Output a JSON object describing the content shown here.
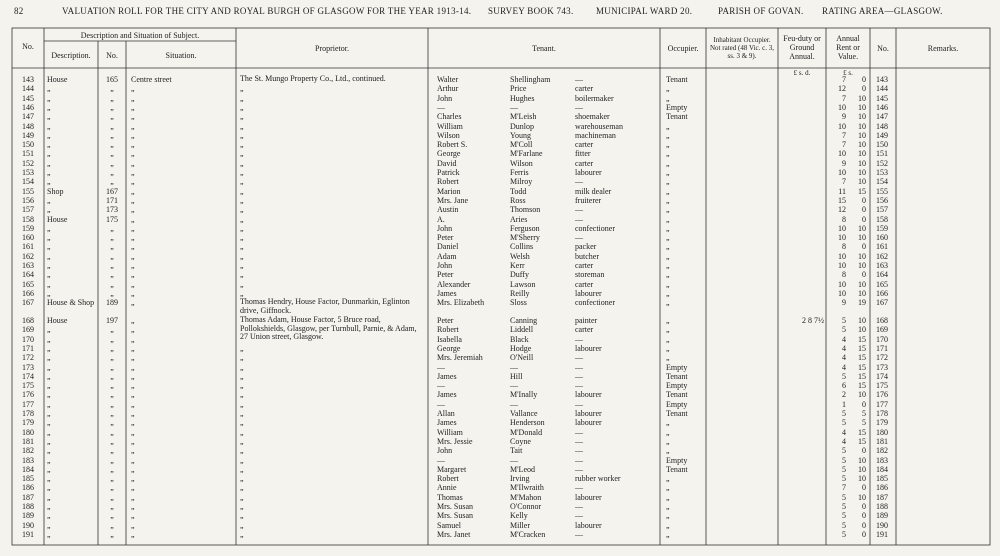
{
  "header": {
    "page": "82",
    "title": "VALUATION ROLL FOR THE CITY AND ROYAL BURGH OF GLASGOW FOR THE YEAR 1913-14.",
    "survey": "SURVEY BOOK 743.",
    "ward": "MUNICIPAL WARD 20.",
    "parish": "PARISH OF GOVAN.",
    "area": "RATING AREA—GLASGOW."
  },
  "columns": {
    "no": "No.",
    "subject": "Description and Situation of Subject.",
    "description": "Description.",
    "house_no": "No.",
    "situation": "Situation.",
    "proprietor": "Proprietor.",
    "tenant": "Tenant.",
    "occupier": "Occupier.",
    "inhabitant": "Inhabitant Occupier. Not rated (48 Vic. c. 3, ss. 3 & 9).",
    "feu": "Feu-duty or Ground Annual.",
    "feu_units": "£ s. d.",
    "rent": "Annual Rent or Value.",
    "rent_units": "£ s.",
    "no2": "No.",
    "remarks": "Remarks."
  },
  "rows": [
    {
      "n": "143",
      "d": "House",
      "h": "165",
      "s": "Centre street",
      "p": "The St. Mungo Property Co., Ltd., continued.",
      "f": "Walter",
      "l": "Shellingham",
      "o": "—",
      "occ": "Tenant",
      "rl": "7",
      "rs": "0",
      "n2": "143"
    },
    {
      "n": "144",
      "d": "„",
      "h": "„",
      "s": "„",
      "p": "„",
      "f": "Arthur",
      "l": "Price",
      "o": "carter",
      "occ": "„",
      "rl": "12",
      "rs": "0",
      "n2": "144"
    },
    {
      "n": "145",
      "d": "„",
      "h": "„",
      "s": "„",
      "p": "„",
      "f": "John",
      "l": "Hughes",
      "o": "boilermaker",
      "occ": "„",
      "rl": "7",
      "rs": "10",
      "n2": "145"
    },
    {
      "n": "146",
      "d": "„",
      "h": "„",
      "s": "„",
      "p": "„",
      "f": "—",
      "l": "—",
      "o": "—",
      "occ": "Empty",
      "rl": "10",
      "rs": "10",
      "n2": "146"
    },
    {
      "n": "147",
      "d": "„",
      "h": "„",
      "s": "„",
      "p": "„",
      "f": "Charles",
      "l": "M'Leish",
      "o": "shoemaker",
      "occ": "Tenant",
      "rl": "9",
      "rs": "10",
      "n2": "147"
    },
    {
      "n": "148",
      "d": "„",
      "h": "„",
      "s": "„",
      "p": "„",
      "f": "William",
      "l": "Dunlop",
      "o": "warehouseman",
      "occ": "„",
      "rl": "10",
      "rs": "10",
      "n2": "148"
    },
    {
      "n": "149",
      "d": "„",
      "h": "„",
      "s": "„",
      "p": "„",
      "f": "Wilson",
      "l": "Young",
      "o": "machineman",
      "occ": "„",
      "rl": "7",
      "rs": "10",
      "n2": "149"
    },
    {
      "n": "150",
      "d": "„",
      "h": "„",
      "s": "„",
      "p": "„",
      "f": "Robert S.",
      "l": "M'Coll",
      "o": "carter",
      "occ": "„",
      "rl": "7",
      "rs": "10",
      "n2": "150"
    },
    {
      "n": "151",
      "d": "„",
      "h": "„",
      "s": "„",
      "p": "„",
      "f": "George",
      "l": "M'Farlane",
      "o": "fitter",
      "occ": "„",
      "rl": "10",
      "rs": "10",
      "n2": "151"
    },
    {
      "n": "152",
      "d": "„",
      "h": "„",
      "s": "„",
      "p": "„",
      "f": "David",
      "l": "Wilson",
      "o": "carter",
      "occ": "„",
      "rl": "9",
      "rs": "10",
      "n2": "152"
    },
    {
      "n": "153",
      "d": "„",
      "h": "„",
      "s": "„",
      "p": "„",
      "f": "Patrick",
      "l": "Ferris",
      "o": "labourer",
      "occ": "„",
      "rl": "10",
      "rs": "10",
      "n2": "153"
    },
    {
      "n": "154",
      "d": "„",
      "h": "„",
      "s": "„",
      "p": "„",
      "f": "Robert",
      "l": "Milroy",
      "o": "—",
      "occ": "„",
      "rl": "7",
      "rs": "10",
      "n2": "154"
    },
    {
      "n": "155",
      "d": "Shop",
      "h": "167",
      "s": "„",
      "p": "„",
      "f": "Marion",
      "l": "Todd",
      "o": "milk dealer",
      "occ": "„",
      "rl": "11",
      "rs": "15",
      "n2": "155"
    },
    {
      "n": "156",
      "d": "„",
      "h": "171",
      "s": "„",
      "p": "„",
      "f": "Mrs. Jane",
      "l": "Ross",
      "o": "fruiterer",
      "occ": "„",
      "rl": "15",
      "rs": "0",
      "n2": "156"
    },
    {
      "n": "157",
      "d": "„",
      "h": "173",
      "s": "„",
      "p": "„",
      "f": "Austin",
      "l": "Thomson",
      "o": "—",
      "occ": "„",
      "rl": "12",
      "rs": "0",
      "n2": "157"
    },
    {
      "n": "158",
      "d": "House",
      "h": "175",
      "s": "„",
      "p": "„",
      "f": "A.",
      "l": "Aries",
      "o": "—",
      "occ": "„",
      "rl": "8",
      "rs": "0",
      "n2": "158"
    },
    {
      "n": "159",
      "d": "„",
      "h": "„",
      "s": "„",
      "p": "„",
      "f": "John",
      "l": "Ferguson",
      "o": "confectioner",
      "occ": "„",
      "rl": "10",
      "rs": "10",
      "n2": "159"
    },
    {
      "n": "160",
      "d": "„",
      "h": "„",
      "s": "„",
      "p": "„",
      "f": "Peter",
      "l": "M'Sherry",
      "o": "—",
      "occ": "„",
      "rl": "10",
      "rs": "10",
      "n2": "160"
    },
    {
      "n": "161",
      "d": "„",
      "h": "„",
      "s": "„",
      "p": "„",
      "f": "Daniel",
      "l": "Collins",
      "o": "packer",
      "occ": "„",
      "rl": "8",
      "rs": "0",
      "n2": "161"
    },
    {
      "n": "162",
      "d": "„",
      "h": "„",
      "s": "„",
      "p": "„",
      "f": "Adam",
      "l": "Welsh",
      "o": "butcher",
      "occ": "„",
      "rl": "10",
      "rs": "10",
      "n2": "162"
    },
    {
      "n": "163",
      "d": "„",
      "h": "„",
      "s": "„",
      "p": "„",
      "f": "John",
      "l": "Kerr",
      "o": "carter",
      "occ": "„",
      "rl": "10",
      "rs": "10",
      "n2": "163"
    },
    {
      "n": "164",
      "d": "„",
      "h": "„",
      "s": "„",
      "p": "„",
      "f": "Peter",
      "l": "Duffy",
      "o": "storeman",
      "occ": "„",
      "rl": "8",
      "rs": "0",
      "n2": "164"
    },
    {
      "n": "165",
      "d": "„",
      "h": "„",
      "s": "„",
      "p": "„",
      "f": "Alexander",
      "l": "Lawson",
      "o": "carter",
      "occ": "„",
      "rl": "10",
      "rs": "10",
      "n2": "165"
    },
    {
      "n": "166",
      "d": "„",
      "h": "„",
      "s": "„",
      "p": "„",
      "f": "James",
      "l": "Reilly",
      "o": "labourer",
      "occ": "„",
      "rl": "10",
      "rs": "10",
      "n2": "166"
    },
    {
      "n": "167",
      "d": "House & Shop",
      "h": "189",
      "s": "„",
      "p": "Thomas Hendry, House Factor, Dunmarkin, Eglinton drive, Giffnock.",
      "f": "Mrs. Elizabeth",
      "l": "Sloss",
      "o": "confectioner",
      "occ": "„",
      "rl": "9",
      "rs": "19",
      "n2": "167"
    },
    {
      "n": "168",
      "d": "House",
      "h": "197",
      "s": "„",
      "p": "Thomas Adam, House Factor, 5 Bruce road, Pollokshields, Glasgow, per Turnbull, Parnie, & Adam, 27 Union street, Glasgow.",
      "f": "Peter",
      "l": "Canning",
      "o": "painter",
      "occ": "„",
      "feu": "2  8  7½",
      "rl": "5",
      "rs": "10",
      "n2": "168"
    },
    {
      "n": "169",
      "d": "„",
      "h": "„",
      "s": "„",
      "f": "Robert",
      "l": "Liddell",
      "o": "carter",
      "occ": "„",
      "rl": "5",
      "rs": "10",
      "n2": "169"
    },
    {
      "n": "170",
      "d": "„",
      "h": "„",
      "s": "„",
      "f": "Isabella",
      "l": "Black",
      "o": "—",
      "occ": "„",
      "rl": "4",
      "rs": "15",
      "n2": "170"
    },
    {
      "n": "171",
      "d": "„",
      "h": "„",
      "s": "„",
      "p": "„",
      "f": "George",
      "l": "Hodge",
      "o": "labourer",
      "occ": "„",
      "rl": "4",
      "rs": "15",
      "n2": "171"
    },
    {
      "n": "172",
      "d": "„",
      "h": "„",
      "s": "„",
      "p": "„",
      "f": "Mrs. Jeremiah",
      "l": "O'Neill",
      "o": "—",
      "occ": "„",
      "rl": "4",
      "rs": "15",
      "n2": "172"
    },
    {
      "n": "173",
      "d": "„",
      "h": "„",
      "s": "„",
      "p": "„",
      "f": "—",
      "l": "—",
      "o": "—",
      "occ": "Empty",
      "rl": "4",
      "rs": "15",
      "n2": "173"
    },
    {
      "n": "174",
      "d": "„",
      "h": "„",
      "s": "„",
      "p": "„",
      "f": "James",
      "l": "Hill",
      "o": "—",
      "occ": "Tenant",
      "rl": "5",
      "rs": "15",
      "n2": "174"
    },
    {
      "n": "175",
      "d": "„",
      "h": "„",
      "s": "„",
      "p": "„",
      "f": "—",
      "l": "—",
      "o": "—",
      "occ": "Empty",
      "rl": "6",
      "rs": "15",
      "n2": "175"
    },
    {
      "n": "176",
      "d": "„",
      "h": "„",
      "s": "„",
      "p": "„",
      "f": "James",
      "l": "M'Inally",
      "o": "labourer",
      "occ": "Tenant",
      "rl": "2",
      "rs": "10",
      "n2": "176"
    },
    {
      "n": "177",
      "d": "„",
      "h": "„",
      "s": "„",
      "p": "„",
      "f": "—",
      "l": "—",
      "o": "—",
      "occ": "Empty",
      "rl": "1",
      "rs": "0",
      "n2": "177"
    },
    {
      "n": "178",
      "d": "„",
      "h": "„",
      "s": "„",
      "p": "„",
      "f": "Allan",
      "l": "Vallance",
      "o": "labourer",
      "occ": "Tenant",
      "rl": "5",
      "rs": "5",
      "n2": "178"
    },
    {
      "n": "179",
      "d": "„",
      "h": "„",
      "s": "„",
      "p": "„",
      "f": "James",
      "l": "Henderson",
      "o": "labourer",
      "occ": "„",
      "rl": "5",
      "rs": "5",
      "n2": "179"
    },
    {
      "n": "180",
      "d": "„",
      "h": "„",
      "s": "„",
      "p": "„",
      "f": "William",
      "l": "M'Donald",
      "o": "—",
      "occ": "„",
      "rl": "4",
      "rs": "15",
      "n2": "180"
    },
    {
      "n": "181",
      "d": "„",
      "h": "„",
      "s": "„",
      "p": "„",
      "f": "Mrs. Jessie",
      "l": "Coyne",
      "o": "—",
      "occ": "„",
      "rl": "4",
      "rs": "15",
      "n2": "181"
    },
    {
      "n": "182",
      "d": "„",
      "h": "„",
      "s": "„",
      "p": "„",
      "f": "John",
      "l": "Tait",
      "o": "—",
      "occ": "„",
      "rl": "5",
      "rs": "0",
      "n2": "182"
    },
    {
      "n": "183",
      "d": "„",
      "h": "„",
      "s": "„",
      "p": "„",
      "f": "—",
      "l": "—",
      "o": "—",
      "occ": "Empty",
      "rl": "5",
      "rs": "10",
      "n2": "183"
    },
    {
      "n": "184",
      "d": "„",
      "h": "„",
      "s": "„",
      "p": "„",
      "f": "Margaret",
      "l": "M'Leod",
      "o": "—",
      "occ": "Tenant",
      "rl": "5",
      "rs": "10",
      "n2": "184"
    },
    {
      "n": "185",
      "d": "„",
      "h": "„",
      "s": "„",
      "p": "„",
      "f": "Robert",
      "l": "Irving",
      "o": "rubber worker",
      "occ": "„",
      "rl": "5",
      "rs": "10",
      "n2": "185"
    },
    {
      "n": "186",
      "d": "„",
      "h": "„",
      "s": "„",
      "p": "„",
      "f": "Annie",
      "l": "M'Ilwraith",
      "o": "—",
      "occ": "„",
      "rl": "7",
      "rs": "0",
      "n2": "186"
    },
    {
      "n": "187",
      "d": "„",
      "h": "„",
      "s": "„",
      "p": "„",
      "f": "Thomas",
      "l": "M'Mahon",
      "o": "labourer",
      "occ": "„",
      "rl": "5",
      "rs": "10",
      "n2": "187"
    },
    {
      "n": "188",
      "d": "„",
      "h": "„",
      "s": "„",
      "p": "„",
      "f": "Mrs. Susan",
      "l": "O'Connor",
      "o": "—",
      "occ": "„",
      "rl": "5",
      "rs": "0",
      "n2": "188"
    },
    {
      "n": "189",
      "d": "„",
      "h": "„",
      "s": "„",
      "p": "„",
      "f": "Mrs. Susan",
      "l": "Kelly",
      "o": "—",
      "occ": "„",
      "rl": "5",
      "rs": "0",
      "n2": "189"
    },
    {
      "n": "190",
      "d": "„",
      "h": "„",
      "s": "„",
      "p": "„",
      "f": "Samuel",
      "l": "Miller",
      "o": "labourer",
      "occ": "„",
      "rl": "5",
      "rs": "0",
      "n2": "190"
    },
    {
      "n": "191",
      "d": "„",
      "h": "„",
      "s": "„",
      "p": "„",
      "f": "Mrs. Janet",
      "l": "M'Cracken",
      "o": "—",
      "occ": "„",
      "rl": "5",
      "rs": "0",
      "n2": "191"
    }
  ]
}
